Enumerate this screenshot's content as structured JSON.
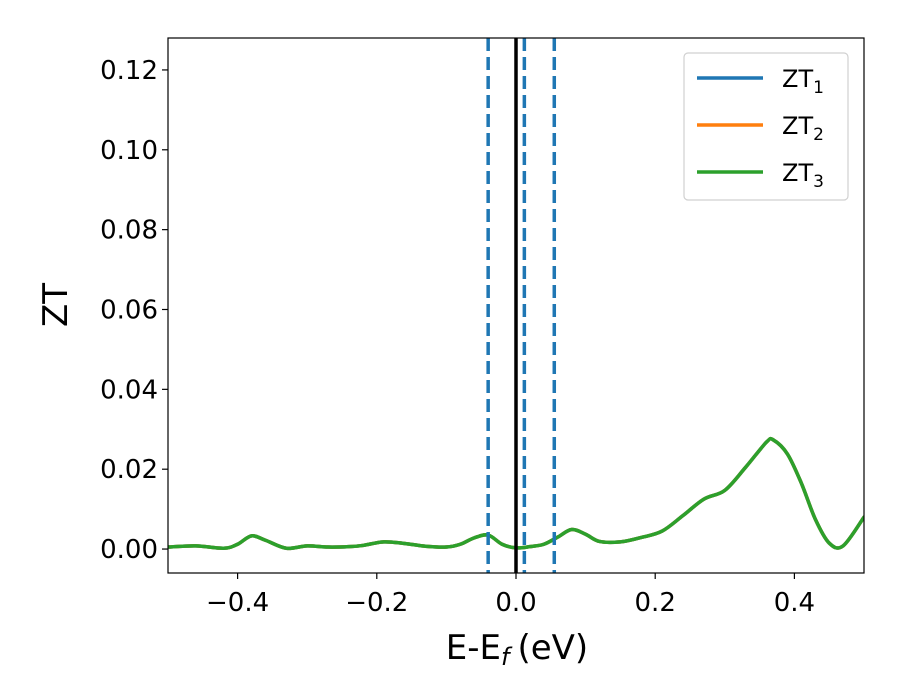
{
  "chart_data": {
    "type": "line",
    "xlabel": "E-E",
    "xlabel_sub": "f",
    "xlabel_unit": "(eV)",
    "ylabel": "ZT",
    "xlim": [
      -0.5,
      0.5
    ],
    "ylim": [
      -0.006,
      0.128
    ],
    "xticks": [
      -0.4,
      -0.2,
      0.0,
      0.2,
      0.4
    ],
    "xtick_labels": [
      "−0.4",
      "−0.2",
      "0.0",
      "0.2",
      "0.4"
    ],
    "yticks": [
      0.0,
      0.02,
      0.04,
      0.06,
      0.08,
      0.1,
      0.12
    ],
    "ytick_labels": [
      "0.00",
      "0.02",
      "0.04",
      "0.06",
      "0.08",
      "0.10",
      "0.12"
    ],
    "grid": false,
    "legend_position": "top-right",
    "colors": {
      "ZT1": "#1f77b4",
      "ZT2": "#ff7f0e",
      "ZT3": "#2ca02c",
      "fermi": "#000000",
      "markers": "#1f77b4"
    },
    "x": [
      -0.5,
      -0.46,
      -0.42,
      -0.4,
      -0.38,
      -0.36,
      -0.33,
      -0.3,
      -0.27,
      -0.24,
      -0.22,
      -0.19,
      -0.16,
      -0.13,
      -0.1,
      -0.08,
      -0.06,
      -0.04,
      -0.02,
      0.0,
      0.02,
      0.04,
      0.06,
      0.08,
      0.1,
      0.12,
      0.15,
      0.18,
      0.21,
      0.24,
      0.27,
      0.3,
      0.33,
      0.36,
      0.37,
      0.39,
      0.41,
      0.43,
      0.45,
      0.47,
      0.5
    ],
    "series": [
      {
        "name": "ZT",
        "sub": "1",
        "values": [
          0.0005,
          0.0008,
          0.0002,
          0.0012,
          0.0033,
          0.0022,
          0.0002,
          0.0008,
          0.0005,
          0.0006,
          0.0009,
          0.0018,
          0.0014,
          0.0007,
          0.0005,
          0.0012,
          0.0028,
          0.0035,
          0.0012,
          0.0003,
          0.0006,
          0.0012,
          0.003,
          0.0049,
          0.0037,
          0.0019,
          0.0018,
          0.0029,
          0.0045,
          0.0084,
          0.0125,
          0.0147,
          0.0205,
          0.0268,
          0.0273,
          0.0238,
          0.0165,
          0.0075,
          0.0015,
          0.0008,
          0.008
        ]
      },
      {
        "name": "ZT",
        "sub": "2",
        "values": [
          0.0005,
          0.0008,
          0.0002,
          0.0012,
          0.0033,
          0.0022,
          0.0002,
          0.0008,
          0.0005,
          0.0006,
          0.0009,
          0.0018,
          0.0014,
          0.0007,
          0.0005,
          0.0012,
          0.0028,
          0.0035,
          0.0012,
          0.0003,
          0.0006,
          0.0012,
          0.003,
          0.0049,
          0.0037,
          0.0019,
          0.0018,
          0.0029,
          0.0045,
          0.0084,
          0.0125,
          0.0147,
          0.0205,
          0.0268,
          0.0273,
          0.0238,
          0.0165,
          0.0075,
          0.0015,
          0.0008,
          0.008
        ]
      },
      {
        "name": "ZT",
        "sub": "3",
        "values": [
          0.0005,
          0.0008,
          0.0002,
          0.0012,
          0.0033,
          0.0022,
          0.0002,
          0.0008,
          0.0005,
          0.0006,
          0.0009,
          0.0018,
          0.0014,
          0.0007,
          0.0005,
          0.0012,
          0.0028,
          0.0035,
          0.0012,
          0.0003,
          0.0006,
          0.0012,
          0.003,
          0.0049,
          0.0037,
          0.0019,
          0.0018,
          0.0029,
          0.0045,
          0.0084,
          0.0125,
          0.0147,
          0.0205,
          0.0268,
          0.0273,
          0.0238,
          0.0165,
          0.0075,
          0.0015,
          0.0008,
          0.008
        ]
      }
    ],
    "vlines": [
      {
        "x": -0.04,
        "style": "dashed"
      },
      {
        "x": 0.012,
        "style": "dashed"
      },
      {
        "x": 0.055,
        "style": "dashed"
      },
      {
        "x": 0.0,
        "style": "solid"
      }
    ]
  }
}
